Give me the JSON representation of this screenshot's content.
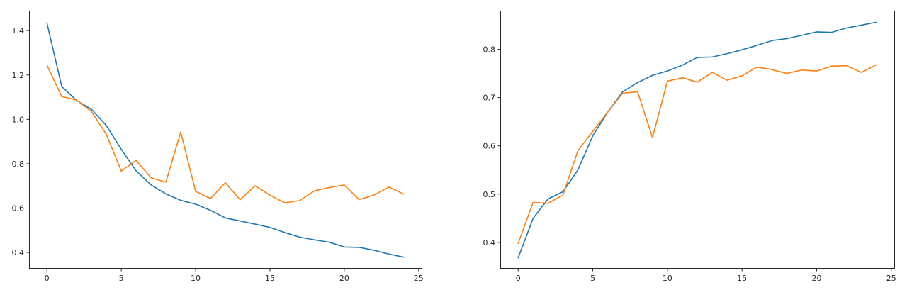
{
  "chart_data": [
    {
      "type": "line",
      "title": "",
      "xlabel": "",
      "ylabel": "",
      "xlim": [
        -1.2,
        25.2
      ],
      "ylim": [
        0.33,
        1.49
      ],
      "xticks": [
        0,
        5,
        10,
        15,
        20,
        25
      ],
      "yticks": [
        0.4,
        0.6,
        0.8,
        1.0,
        1.2,
        1.4
      ],
      "ytick_labels": [
        "0.4",
        "0.6",
        "0.8",
        "1.0",
        "1.2",
        "1.4"
      ],
      "xtick_labels": [
        "0",
        "5",
        "10",
        "15",
        "20",
        "25"
      ],
      "grid": false,
      "x": [
        0,
        1,
        2,
        3,
        4,
        5,
        6,
        7,
        8,
        9,
        10,
        11,
        12,
        13,
        14,
        15,
        16,
        17,
        18,
        19,
        20,
        21,
        22,
        23,
        24
      ],
      "series": [
        {
          "color": "#1f77b4",
          "values": [
            1.435,
            1.148,
            1.085,
            1.045,
            0.972,
            0.865,
            0.768,
            0.705,
            0.664,
            0.635,
            0.618,
            0.59,
            0.556,
            0.542,
            0.528,
            0.513,
            0.49,
            0.469,
            0.457,
            0.446,
            0.425,
            0.423,
            0.41,
            0.393,
            0.379
          ]
        },
        {
          "color": "#ff7f0e",
          "values": [
            1.245,
            1.103,
            1.087,
            1.035,
            0.932,
            0.767,
            0.815,
            0.737,
            0.717,
            0.943,
            0.676,
            0.643,
            0.714,
            0.638,
            0.701,
            0.658,
            0.624,
            0.634,
            0.678,
            0.693,
            0.704,
            0.638,
            0.659,
            0.695,
            0.663
          ]
        }
      ]
    },
    {
      "type": "line",
      "title": "",
      "xlabel": "",
      "ylabel": "",
      "xlim": [
        -1.2,
        25.2
      ],
      "ylim": [
        0.347,
        0.88
      ],
      "xticks": [
        0,
        5,
        10,
        15,
        20,
        25
      ],
      "yticks": [
        0.4,
        0.5,
        0.6,
        0.7,
        0.8
      ],
      "ytick_labels": [
        "0.4",
        "0.5",
        "0.6",
        "0.7",
        "0.8"
      ],
      "xtick_labels": [
        "0",
        "5",
        "10",
        "15",
        "20",
        "25"
      ],
      "grid": false,
      "x": [
        0,
        1,
        2,
        3,
        4,
        5,
        6,
        7,
        8,
        9,
        10,
        11,
        12,
        13,
        14,
        15,
        16,
        17,
        18,
        19,
        20,
        21,
        22,
        23,
        24
      ],
      "series": [
        {
          "color": "#1f77b4",
          "values": [
            0.368,
            0.45,
            0.49,
            0.505,
            0.55,
            0.621,
            0.67,
            0.712,
            0.731,
            0.746,
            0.755,
            0.767,
            0.783,
            0.784,
            0.791,
            0.799,
            0.808,
            0.818,
            0.822,
            0.829,
            0.836,
            0.835,
            0.844,
            0.85,
            0.856
          ]
        },
        {
          "color": "#ff7f0e",
          "values": [
            0.398,
            0.483,
            0.481,
            0.498,
            0.59,
            0.63,
            0.67,
            0.709,
            0.712,
            0.617,
            0.734,
            0.741,
            0.732,
            0.752,
            0.736,
            0.745,
            0.763,
            0.758,
            0.75,
            0.757,
            0.755,
            0.765,
            0.766,
            0.752,
            0.768
          ]
        }
      ]
    }
  ]
}
